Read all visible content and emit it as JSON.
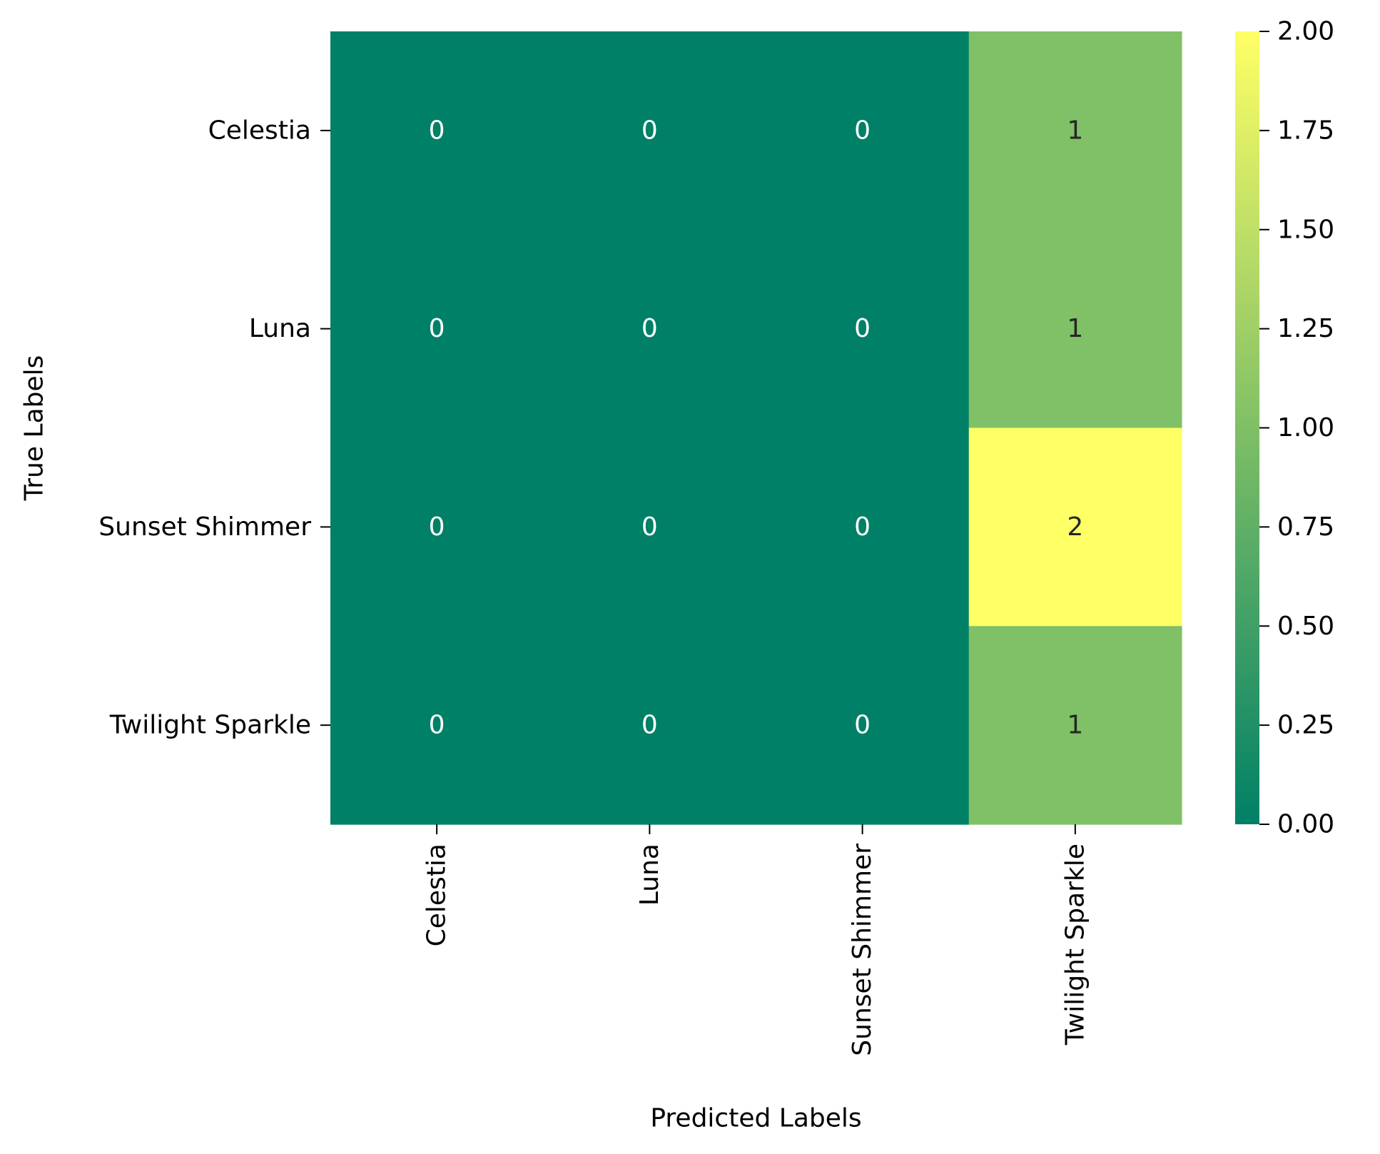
{
  "chart_data": {
    "type": "heatmap",
    "title": "",
    "xlabel": "Predicted Labels",
    "ylabel": "True Labels",
    "x_categories": [
      "Celestia",
      "Luna",
      "Sunset Shimmer",
      "Twilight Sparkle"
    ],
    "y_categories": [
      "Celestia",
      "Luna",
      "Sunset Shimmer",
      "Twilight Sparkle"
    ],
    "matrix": [
      [
        0,
        0,
        0,
        1
      ],
      [
        0,
        0,
        0,
        1
      ],
      [
        0,
        0,
        0,
        2
      ],
      [
        0,
        0,
        0,
        1
      ]
    ],
    "colorbar": {
      "vmin": 0,
      "vmax": 2,
      "ticks": [
        "0.00",
        "0.25",
        "0.50",
        "0.75",
        "1.00",
        "1.25",
        "1.50",
        "1.75",
        "2.00"
      ]
    },
    "colormap": "summer",
    "colors": {
      "low": "#008066",
      "mid": "#80bf66",
      "high": "#ffff66",
      "text_dark_cell": "#ffffff",
      "text_light_cell": "#262626",
      "axis": "#000000"
    }
  }
}
